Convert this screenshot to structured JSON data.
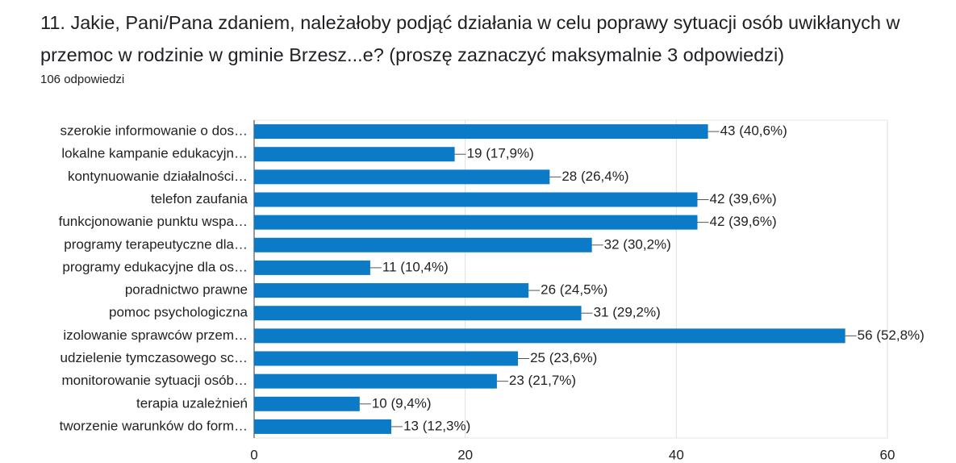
{
  "chart_data": {
    "type": "bar",
    "orientation": "horizontal",
    "title": "11. Jakie, Pani/Pana zdaniem, należałoby podjąć działania w celu poprawy sytuacji osób uwikłanych w przemoc w rodzinie w gminie Brzesz...e? (proszę zaznaczyć maksymalnie 3 odpowiedzi)",
    "subtitle": "106 odpowiedzi",
    "categories": [
      "szerokie informowanie o dos…",
      "lokalne kampanie edukacyjn…",
      "kontynuowanie działalności…",
      "telefon zaufania",
      "funkcjonowanie punktu wspa…",
      "programy terapeutyczne dla…",
      "programy edukacyjne dla os…",
      "poradnictwo prawne",
      "pomoc psychologiczna",
      "izolowanie sprawców przem…",
      "udzielenie tymczasowego sc…",
      "monitorowanie sytuacji osób…",
      "terapia uzależnień",
      "tworzenie warunków do form…"
    ],
    "values": [
      43,
      19,
      28,
      42,
      42,
      32,
      11,
      26,
      31,
      56,
      25,
      23,
      10,
      13
    ],
    "value_labels": [
      "43 (40,6%)",
      "19 (17,9%)",
      "28 (26,4%)",
      "42 (39,6%)",
      "42 (39,6%)",
      "32 (30,2%)",
      "11 (10,4%)",
      "26 (24,5%)",
      "31 (29,2%)",
      "56 (52,8%)",
      "25 (23,6%)",
      "23 (21,7%)",
      "10 (9,4%)",
      "13 (12,3%)"
    ],
    "color": "#0b7bc7",
    "xlim": [
      0,
      60
    ],
    "xticks": [
      0,
      20,
      40,
      60
    ],
    "grid": true
  }
}
